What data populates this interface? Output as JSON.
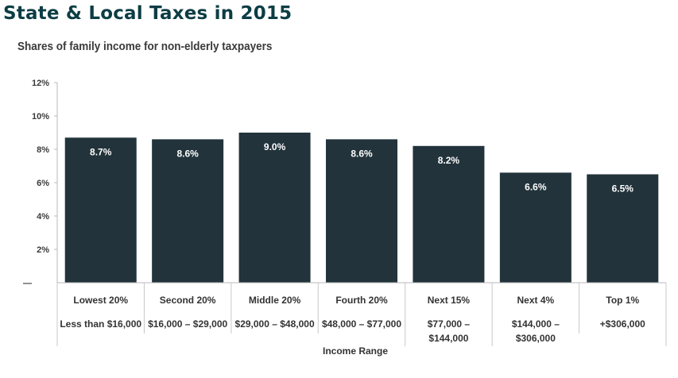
{
  "title": "State & Local Taxes in 2015",
  "subtitle": "Shares of family income for non-elderly taxpayers",
  "chart_data": {
    "type": "bar",
    "categories": [
      "Lowest 20%",
      "Second 20%",
      "Middle 20%",
      "Fourth 20%",
      "Next 15%",
      "Next 4%",
      "Top 1%"
    ],
    "income_ranges": [
      [
        "Less than $16,000"
      ],
      [
        "$16,000 – $29,000"
      ],
      [
        "$29,000 – $48,000"
      ],
      [
        "$48,000 – $77,000"
      ],
      [
        "$77,000 –",
        "$144,000"
      ],
      [
        "$144,000 –",
        "$306,000"
      ],
      [
        "+$306,000"
      ]
    ],
    "values": [
      8.7,
      8.6,
      9.0,
      8.6,
      8.2,
      6.6,
      6.5
    ],
    "data_labels": [
      "8.7%",
      "8.6%",
      "9.0%",
      "8.6%",
      "8.2%",
      "6.6%",
      "6.5%"
    ],
    "y_ticks": [
      {
        "value": 0,
        "label": "—"
      },
      {
        "value": 2,
        "label": "2%"
      },
      {
        "value": 4,
        "label": "4%"
      },
      {
        "value": 6,
        "label": "6%"
      },
      {
        "value": 8,
        "label": "8%"
      },
      {
        "value": 10,
        "label": "10%"
      },
      {
        "value": 12,
        "label": "12%"
      }
    ],
    "ylim": [
      0,
      12
    ],
    "xlabel": "Income Range",
    "ylabel": "",
    "grid": false,
    "bar_color": "#22333b"
  }
}
